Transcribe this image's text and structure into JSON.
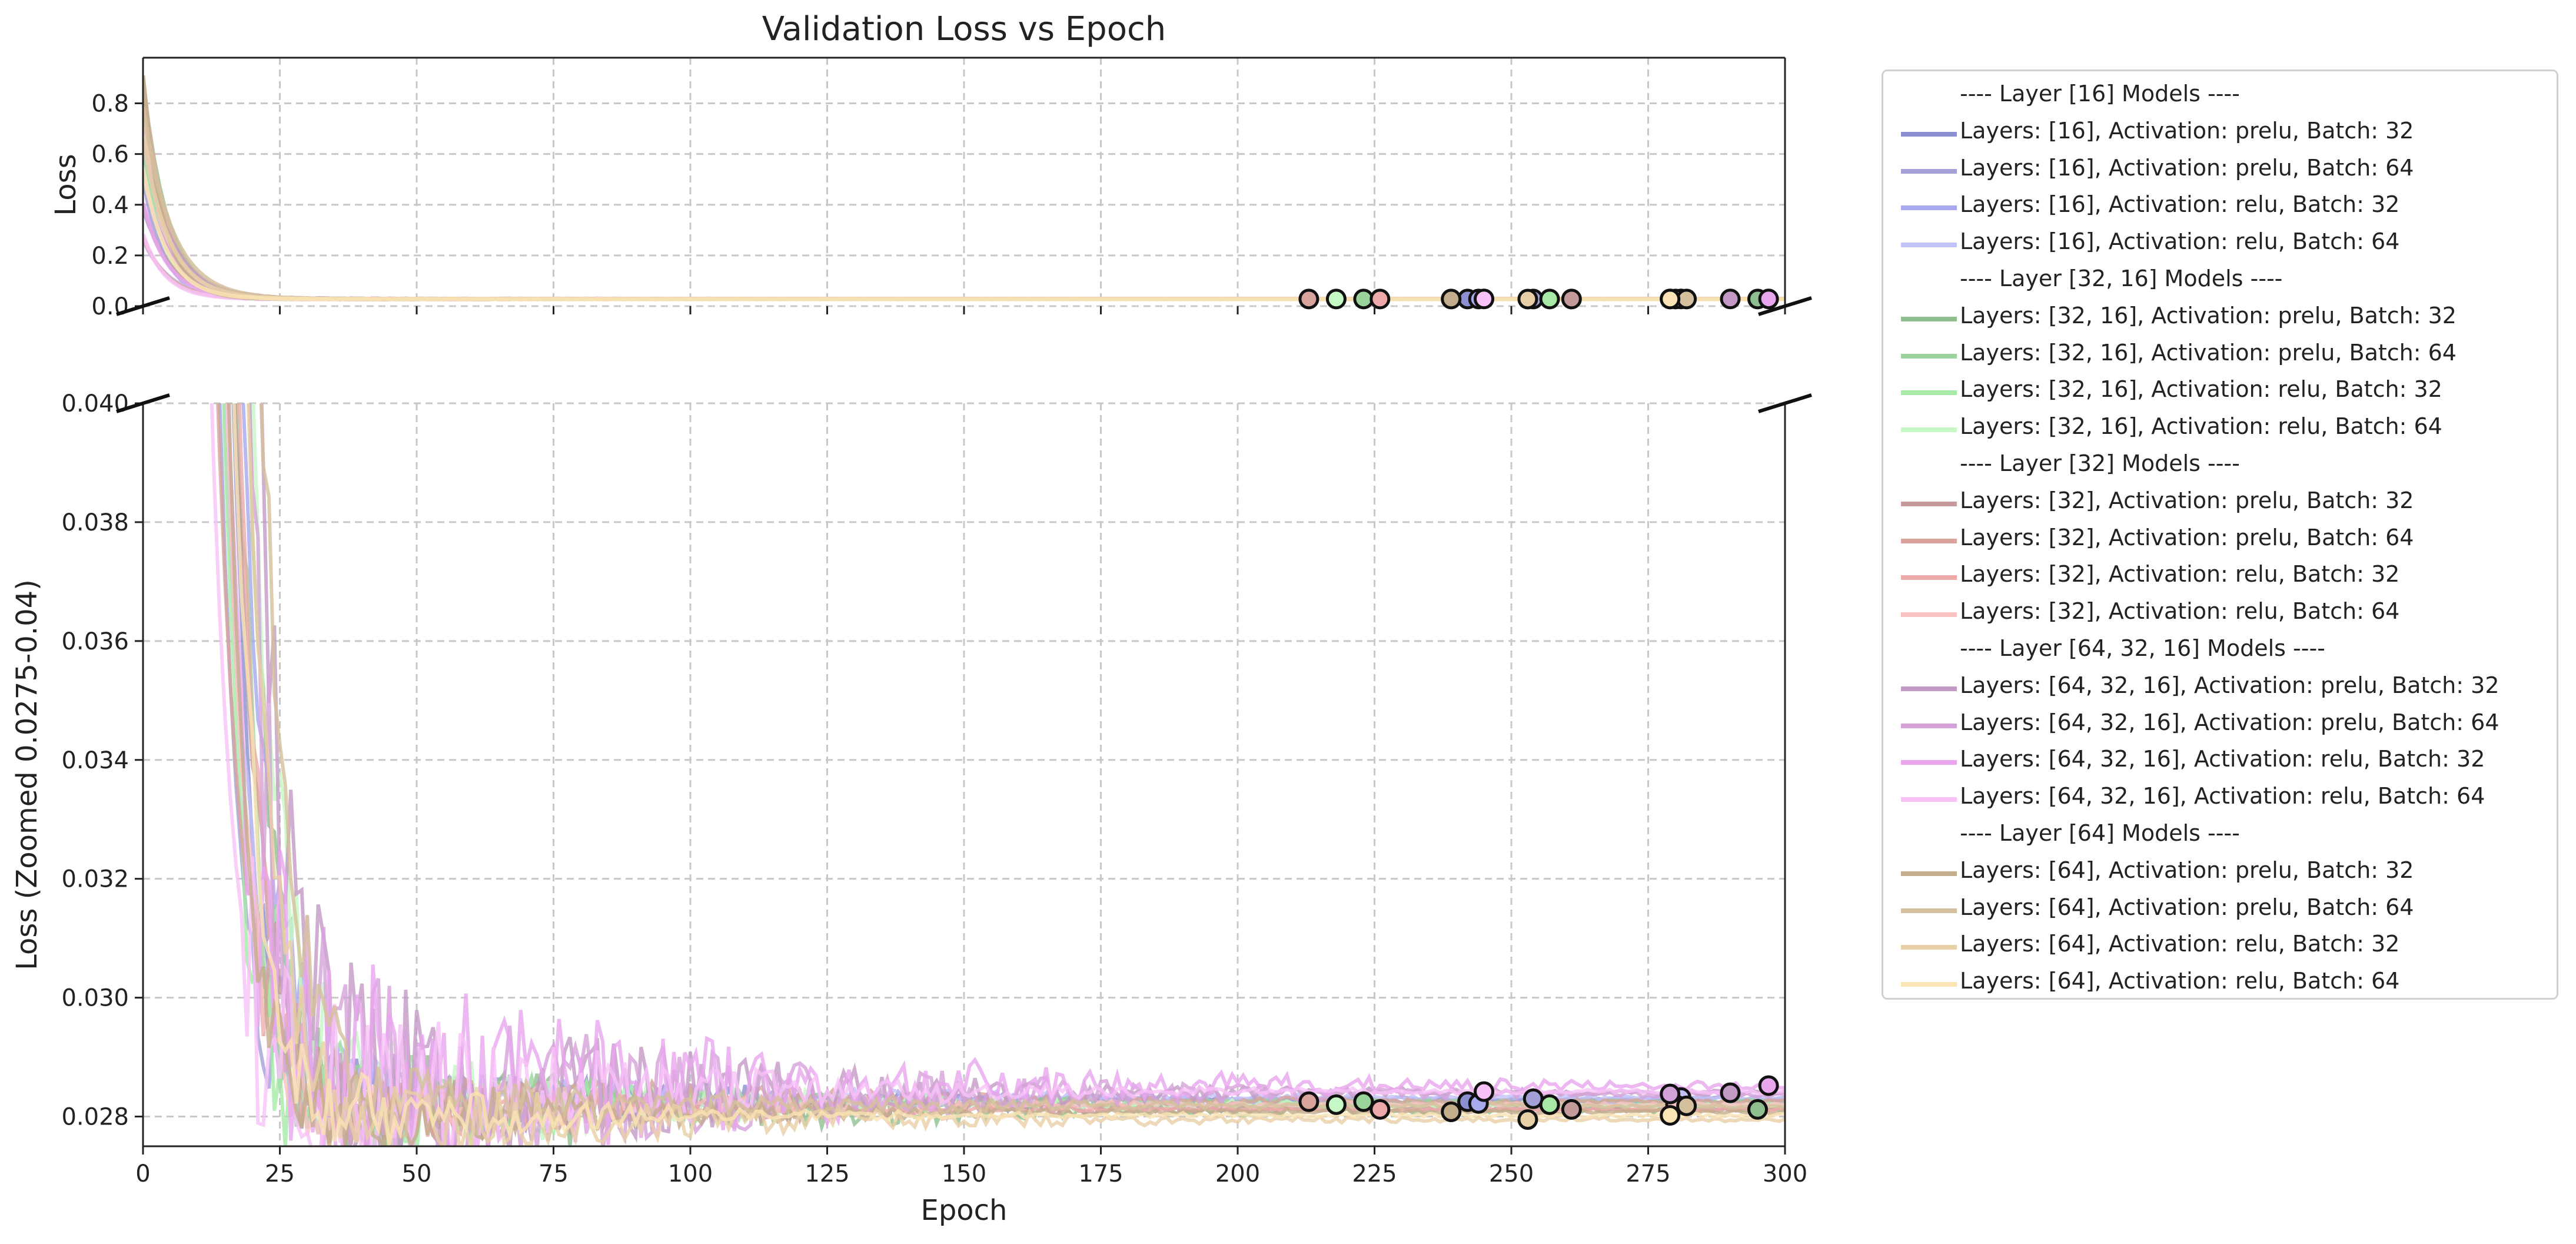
{
  "chart_data": {
    "type": "line",
    "title": "Validation Loss vs Epoch",
    "xlabel": "Epoch",
    "top_panel": {
      "ylabel": "Loss",
      "ylim": [
        0.0,
        0.98
      ],
      "yticks": [
        "0.0",
        "0.2",
        "0.4",
        "0.6",
        "0.8"
      ]
    },
    "bottom_panel": {
      "ylabel": "Loss (Zoomed 0.0275-0.04)",
      "ylim": [
        0.0275,
        0.04
      ],
      "yticks": [
        "0.028",
        "0.030",
        "0.032",
        "0.034",
        "0.036",
        "0.038",
        "0.040"
      ]
    },
    "xlim": [
      0,
      300
    ],
    "xticks": [
      "0",
      "25",
      "50",
      "75",
      "100",
      "125",
      "150",
      "175",
      "200",
      "225",
      "250",
      "275",
      "300"
    ],
    "grid": true,
    "legend_position": "outside-right",
    "groups": [
      {
        "header": "---- Layer [16] Models ----",
        "series": [
          {
            "name": "Layers: [16], Activation: prelu, Batch: 32",
            "color": "#8c8fd0",
            "final": 0.02825,
            "best_epoch": 242,
            "seed": 1
          },
          {
            "name": "Layers: [16], Activation: prelu, Batch: 64",
            "color": "#a3a0d8",
            "final": 0.0283,
            "best_epoch": 254,
            "seed": 2
          },
          {
            "name": "Layers: [16], Activation: relu, Batch: 32",
            "color": "#a8a8ee",
            "final": 0.02822,
            "best_epoch": 244,
            "seed": 3
          },
          {
            "name": "Layers: [16], Activation: relu, Batch: 64",
            "color": "#c2c2f8",
            "final": 0.02832,
            "best_epoch": 281,
            "seed": 4
          }
        ]
      },
      {
        "header": "---- Layer [32, 16] Models ----",
        "series": [
          {
            "name": "Layers: [32, 16], Activation: prelu, Batch: 32",
            "color": "#8fbf8f",
            "final": 0.02812,
            "best_epoch": 295,
            "seed": 5
          },
          {
            "name": "Layers: [32, 16], Activation: prelu, Batch: 64",
            "color": "#9ad49a",
            "final": 0.02825,
            "best_epoch": 223,
            "seed": 6
          },
          {
            "name": "Layers: [32, 16], Activation: relu, Batch: 32",
            "color": "#a6eaa6",
            "final": 0.0282,
            "best_epoch": 257,
            "seed": 7
          },
          {
            "name": "Layers: [32, 16], Activation: relu, Batch: 64",
            "color": "#c6f8c6",
            "final": 0.0282,
            "best_epoch": 218,
            "seed": 8
          }
        ]
      },
      {
        "header": "---- Layer [32] Models ----",
        "series": [
          {
            "name": "Layers: [32], Activation: prelu, Batch: 32",
            "color": "#c49a9a",
            "final": 0.02812,
            "best_epoch": 261,
            "seed": 9
          },
          {
            "name": "Layers: [32], Activation: prelu, Batch: 64",
            "color": "#d8a49c",
            "final": 0.02825,
            "best_epoch": 213,
            "seed": 10
          },
          {
            "name": "Layers: [32], Activation: relu, Batch: 32",
            "color": "#eeaaaa",
            "final": 0.02812,
            "best_epoch": 226,
            "seed": 11
          },
          {
            "name": "Layers: [32], Activation: relu, Batch: 64",
            "color": "#f8c2c2",
            "final": 0.0282,
            "best_epoch": 280,
            "seed": 12
          }
        ]
      },
      {
        "header": "---- Layer [64, 32, 16] Models ----",
        "series": [
          {
            "name": "Layers: [64, 32, 16], Activation: prelu, Batch: 32",
            "color": "#c39ac6",
            "final": 0.0284,
            "best_epoch": 290,
            "seed": 13
          },
          {
            "name": "Layers: [64, 32, 16], Activation: prelu, Batch: 64",
            "color": "#d4a2d8",
            "final": 0.02838,
            "best_epoch": 279,
            "seed": 14
          },
          {
            "name": "Layers: [64, 32, 16], Activation: relu, Batch: 32",
            "color": "#e8a6ee",
            "final": 0.02852,
            "best_epoch": 297,
            "seed": 15
          },
          {
            "name": "Layers: [64, 32, 16], Activation: relu, Batch: 64",
            "color": "#f8c2f8",
            "final": 0.02842,
            "best_epoch": 245,
            "seed": 16
          }
        ]
      },
      {
        "header": "---- Layer [64] Models ----",
        "series": [
          {
            "name": "Layers: [64], Activation: prelu, Batch: 32",
            "color": "#c4ad8c",
            "final": 0.02808,
            "best_epoch": 239,
            "seed": 17
          },
          {
            "name": "Layers: [64], Activation: prelu, Batch: 64",
            "color": "#d4c09c",
            "final": 0.02818,
            "best_epoch": 282,
            "seed": 18
          },
          {
            "name": "Layers: [64], Activation: relu, Batch: 32",
            "color": "#e8d0a6",
            "final": 0.02795,
            "best_epoch": 253,
            "seed": 19
          },
          {
            "name": "Layers: [64], Activation: relu, Batch: 64",
            "color": "#fae4b4",
            "final": 0.02802,
            "best_epoch": 279,
            "seed": 20
          }
        ]
      }
    ]
  }
}
